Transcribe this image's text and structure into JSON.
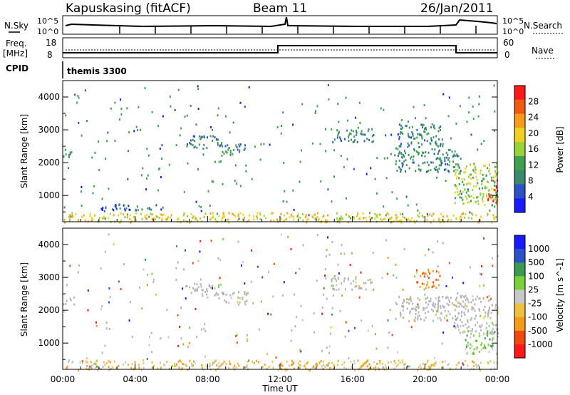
{
  "header": {
    "radar": "Kapuskasing (fitACF)",
    "beam": "Beam 11",
    "date": "26/Jan/2011"
  },
  "noise_panel": {
    "left_label": "N.Sky",
    "right_label": "N.Search",
    "ticks": [
      "10^5",
      "10^0"
    ]
  },
  "freq_panel": {
    "left_label": "Freq.",
    "left_unit": "[MHz]",
    "left_ticks": [
      "18",
      "8"
    ],
    "right_label": "Nave",
    "right_ticks": [
      "60",
      "0"
    ]
  },
  "cpid": {
    "label": "CPID",
    "value": "themis 3300"
  },
  "colors": {
    "power": [
      "#1a1aff",
      "#2b52c8",
      "#3a8a6e",
      "#40a050",
      "#9ad23a",
      "#f0d020",
      "#f59a1a",
      "#f05a10",
      "#ff1a1a"
    ],
    "velocity": [
      "#ff1a1a",
      "#f04a10",
      "#f59a1a",
      "#f0c040",
      "#c8c8c8",
      "#7ad23a",
      "#3a9a50",
      "#2b52c8",
      "#1a1aff"
    ],
    "groundscatter": "#b4b4b4"
  },
  "chart_data": [
    {
      "type": "heatmap",
      "name": "power",
      "xlabel": "Time UT",
      "ylabel": "Slant Range [km]",
      "x_ticks": [
        "00:00",
        "04:00",
        "08:00",
        "12:00",
        "16:00",
        "20:00",
        "00:00"
      ],
      "xlim": [
        0,
        24
      ],
      "ylim": [
        200,
        4500
      ],
      "y_ticks": [
        "1000",
        "2000",
        "3000",
        "4000"
      ],
      "colorbar": {
        "label": "Power [dB]",
        "ticks": [
          "28",
          "24",
          "20",
          "16",
          "12",
          "8",
          "4"
        ],
        "range": [
          0,
          30
        ]
      },
      "regions": [
        {
          "t": [
            0.0,
            0.6
          ],
          "r": [
            2200,
            2450
          ],
          "level": 2
        },
        {
          "t": [
            2.0,
            5.5
          ],
          "r": [
            550,
            750
          ],
          "level": 1
        },
        {
          "t": [
            6.8,
            8.8
          ],
          "r": [
            2450,
            2850
          ],
          "level": 2
        },
        {
          "t": [
            8.8,
            10.2
          ],
          "r": [
            2250,
            2600
          ],
          "level": 2
        },
        {
          "t": [
            14.8,
            17.2
          ],
          "r": [
            2650,
            3050
          ],
          "level": 2
        },
        {
          "t": [
            18.3,
            22.0
          ],
          "r": [
            1750,
            2450
          ],
          "level": 2
        },
        {
          "t": [
            18.5,
            21.0
          ],
          "r": [
            2500,
            3200
          ],
          "level": 2
        },
        {
          "t": [
            21.6,
            24.0
          ],
          "r": [
            700,
            2000
          ],
          "level": 4
        },
        {
          "t": [
            23.4,
            24.0
          ],
          "r": [
            800,
            1500
          ],
          "level": 8
        },
        {
          "t": [
            0.0,
            24.0
          ],
          "r": [
            200,
            500
          ],
          "level": 5
        }
      ]
    },
    {
      "type": "heatmap",
      "name": "velocity",
      "xlabel": "Time UT",
      "ylabel": "Slant Range [km]",
      "x_ticks": [
        "00:00",
        "04:00",
        "08:00",
        "12:00",
        "16:00",
        "20:00",
        "00:00"
      ],
      "xlim": [
        0,
        24
      ],
      "ylim": [
        200,
        4500
      ],
      "y_ticks": [
        "1000",
        "2000",
        "3000",
        "4000"
      ],
      "colorbar": {
        "label": "Velocity [m s^-1]",
        "ticks": [
          "1000",
          "500",
          "100",
          "25",
          "-25",
          "-100",
          "-500",
          "-1000"
        ],
        "range": [
          -1000,
          1000
        ]
      },
      "regions": [
        {
          "t": [
            0.0,
            0.6
          ],
          "r": [
            2200,
            2450
          ],
          "level": 4
        },
        {
          "t": [
            6.8,
            8.8
          ],
          "r": [
            2450,
            2850
          ],
          "level": 4
        },
        {
          "t": [
            8.8,
            10.2
          ],
          "r": [
            2200,
            2600
          ],
          "level": 4
        },
        {
          "t": [
            14.8,
            17.2
          ],
          "r": [
            2650,
            3050
          ],
          "level": 4
        },
        {
          "t": [
            18.3,
            22.0
          ],
          "r": [
            1700,
            2450
          ],
          "level": 4
        },
        {
          "t": [
            19.5,
            20.8
          ],
          "r": [
            2700,
            3300
          ],
          "level": 2
        },
        {
          "t": [
            21.6,
            24.0
          ],
          "r": [
            1300,
            2500
          ],
          "level": 4
        },
        {
          "t": [
            22.2,
            24.0
          ],
          "r": [
            700,
            1400
          ],
          "level": 5
        },
        {
          "t": [
            0.0,
            24.0
          ],
          "r": [
            200,
            500
          ],
          "level": 3
        }
      ]
    }
  ]
}
